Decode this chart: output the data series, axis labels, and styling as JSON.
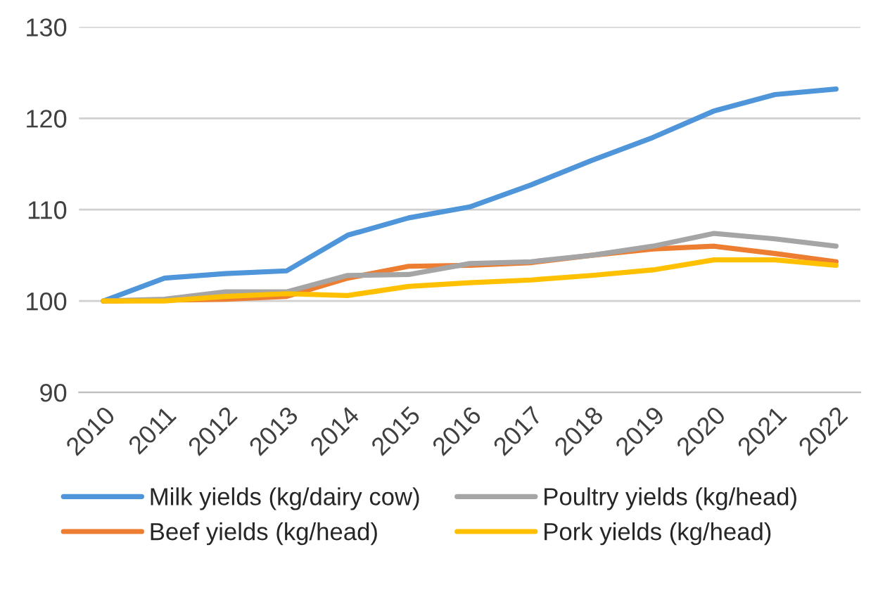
{
  "chart_data": {
    "type": "line",
    "x": [
      2010,
      2011,
      2012,
      2013,
      2014,
      2015,
      2016,
      2017,
      2018,
      2019,
      2020,
      2021,
      2022
    ],
    "xlim": [
      2009.6,
      2022.4
    ],
    "xticks": [
      2010,
      2011,
      2012,
      2013,
      2014,
      2015,
      2016,
      2017,
      2018,
      2019,
      2020,
      2021,
      2022
    ],
    "ylim": [
      90,
      130
    ],
    "yticks": [
      90,
      100,
      110,
      120,
      130
    ],
    "grid": "y",
    "legend": "bottom",
    "line_style": "solid",
    "marker": "none",
    "series": [
      {
        "name": "Milk yields (kg/dairy cow)",
        "color": "#4e95d9",
        "values": [
          100,
          102.5,
          103,
          103.3,
          107.2,
          109.1,
          110.3,
          112.7,
          115.4,
          117.9,
          120.8,
          122.6,
          123.2
        ]
      },
      {
        "name": "Beef yields (kg/head)",
        "color": "#ed7d31",
        "values": [
          100,
          100.1,
          100.2,
          100.5,
          102.5,
          103.8,
          103.9,
          104.2,
          105,
          105.7,
          106,
          105.2,
          104.3
        ]
      },
      {
        "name": "Poultry yields (kg/head)",
        "color": "#a5a5a5",
        "values": [
          100,
          100.2,
          101,
          101,
          102.8,
          102.9,
          104.1,
          104.3,
          105,
          106,
          107.4,
          106.8,
          106
        ]
      },
      {
        "name": "Pork yields (kg/head)",
        "color": "#ffc000",
        "values": [
          100,
          100,
          100.5,
          100.8,
          100.6,
          101.6,
          102,
          102.3,
          102.8,
          103.4,
          104.5,
          104.5,
          103.9
        ]
      }
    ]
  }
}
